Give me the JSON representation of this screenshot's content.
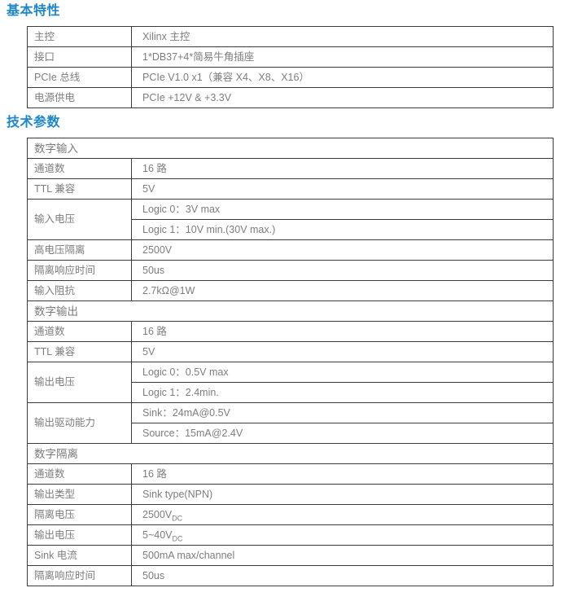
{
  "basic": {
    "title": "基本特性",
    "rows": [
      {
        "label": "主控",
        "value": "Xilinx 主控"
      },
      {
        "label": "接口",
        "value": "1*DB37+4*简易牛角插座"
      },
      {
        "label": "PCIe 总线",
        "value": "PCIe V1.0 x1（兼容 X4、X8、X16）"
      },
      {
        "label": "电源供电",
        "value": "PCIe +12V & +3.3V"
      }
    ]
  },
  "tech": {
    "title": "技术参数",
    "digital_input": {
      "header": "数字输入",
      "channels": {
        "label": "通道数",
        "value": "16 路"
      },
      "ttl": {
        "label": "TTL 兼容",
        "value": "5V"
      },
      "input_voltage": {
        "label": "输入电压",
        "logic0": "Logic 0：3V max",
        "logic1": "Logic 1：10V min.(30V max.)"
      },
      "hv_isolation": {
        "label": "高电压隔离",
        "value": "2500V"
      },
      "iso_response": {
        "label": "隔离响应时间",
        "value": "50us"
      },
      "input_impedance": {
        "label": "输入阻抗",
        "value": "2.7kΩ@1W"
      }
    },
    "digital_output": {
      "header": "数字输出",
      "channels": {
        "label": "通道数",
        "value": "16 路"
      },
      "ttl": {
        "label": "TTL 兼容",
        "value": "5V"
      },
      "output_voltage": {
        "label": "输出电压",
        "logic0": "Logic 0：0.5V max",
        "logic1": "Logic 1：2.4min."
      },
      "drive": {
        "label": "输出驱动能力",
        "sink": "Sink：24mA@0.5V",
        "source": "Source：15mA@2.4V"
      }
    },
    "digital_isolation": {
      "header": "数字隔离",
      "channels": {
        "label": "通道数",
        "value": "16 路"
      },
      "output_type": {
        "label": "输出类型",
        "value": "Sink type(NPN)"
      },
      "iso_voltage": {
        "label": "隔离电压",
        "value": "2500V",
        "sub": "DC"
      },
      "output_voltage": {
        "label": "输出电压",
        "value": "5~40V",
        "sub": "DC"
      },
      "sink_current": {
        "label": "Sink 电流",
        "value": "500mA max/channel"
      },
      "iso_response": {
        "label": "隔离响应时间",
        "value": "50us"
      }
    }
  },
  "colors": {
    "accent_blue": "#1d87c9",
    "table_text": "#7d7d7d",
    "table_border": "#3a3a3a"
  }
}
